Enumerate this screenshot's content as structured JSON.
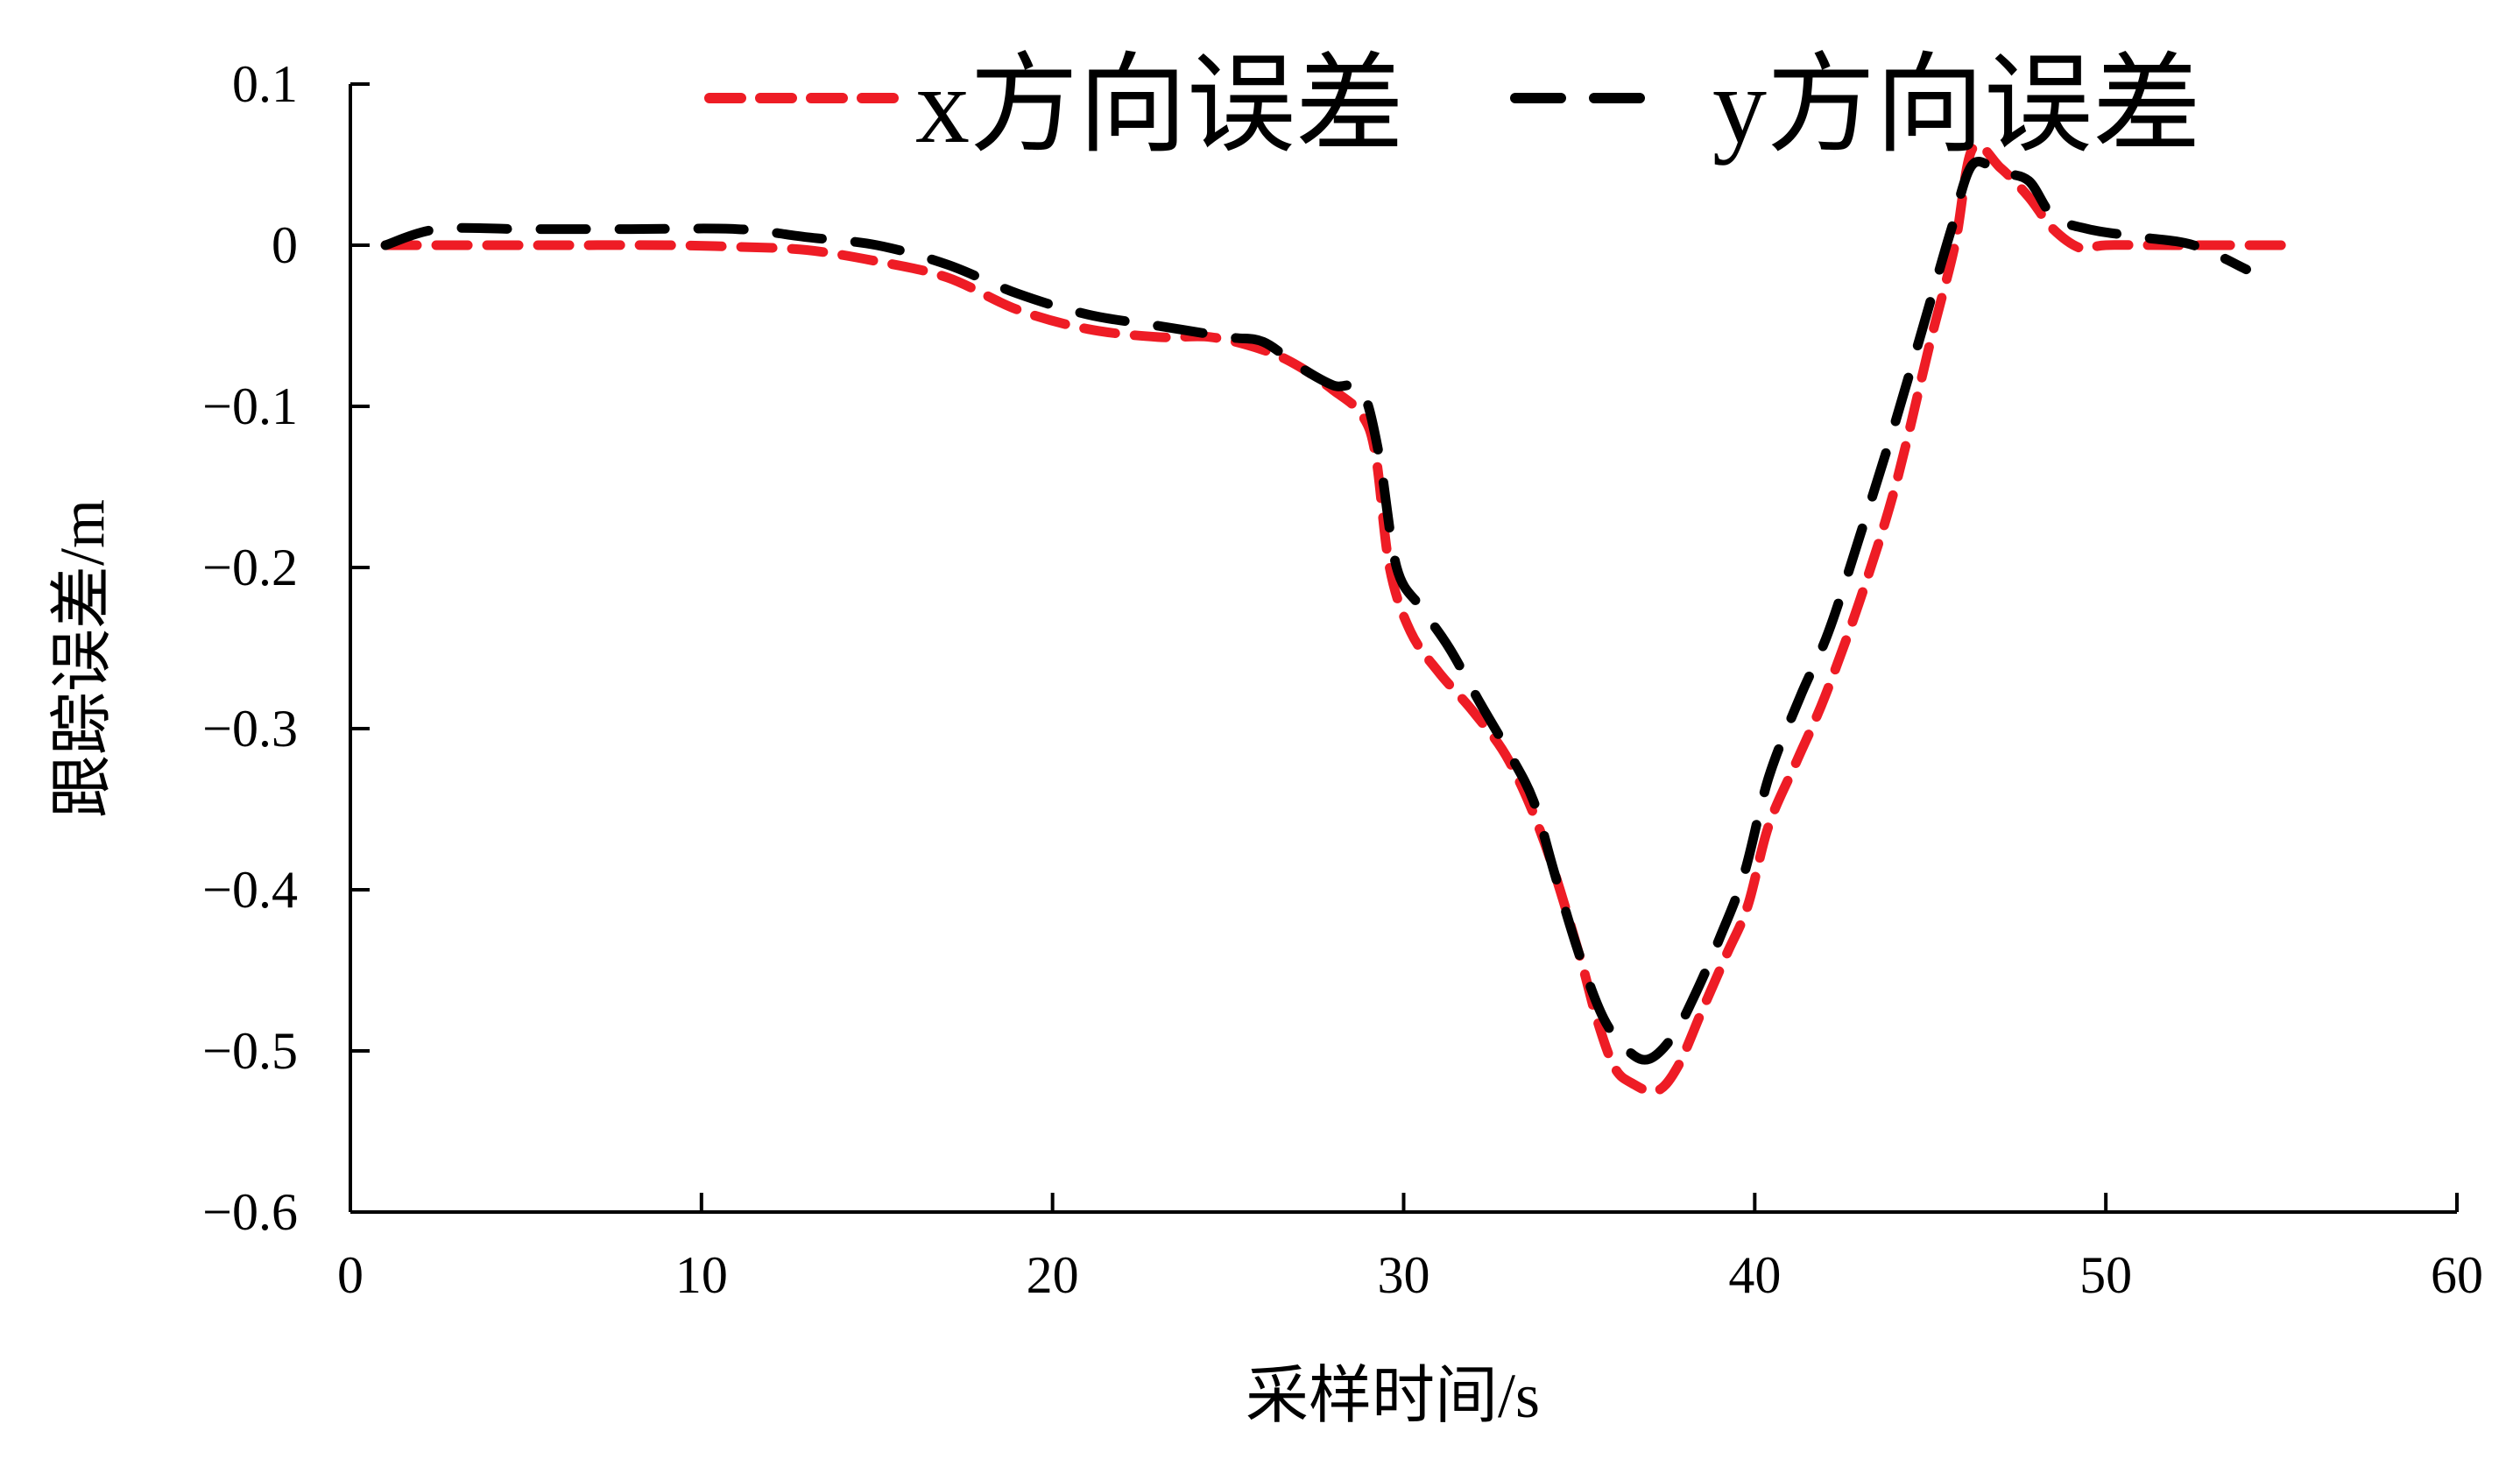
{
  "chart_data": {
    "type": "line",
    "xlabel": "采样时间/s",
    "ylabel": "跟踪误差/m",
    "xlim": [
      0,
      60
    ],
    "ylim": [
      -0.6,
      0.1
    ],
    "x_ticks": [
      0,
      10,
      20,
      30,
      40,
      50,
      60
    ],
    "x_tick_labels": [
      "0",
      "10",
      "20",
      "30",
      "40",
      "50",
      "60"
    ],
    "y_ticks": [
      0.1,
      0,
      -0.1,
      -0.2,
      -0.3,
      -0.4,
      -0.5,
      -0.6
    ],
    "y_tick_labels": [
      "0.1",
      "0",
      "−0.1",
      "−0.2",
      "−0.3",
      "−0.4",
      "−0.5",
      "−0.6"
    ],
    "grid": false,
    "legend_position": "top",
    "series": [
      {
        "name": "x方向误差",
        "color": "#ee1c25",
        "line_style": "dashed",
        "points": [
          [
            1,
            0
          ],
          [
            3,
            0
          ],
          [
            6,
            0
          ],
          [
            9,
            0
          ],
          [
            11,
            -0.001
          ],
          [
            13,
            -0.003
          ],
          [
            15,
            -0.01
          ],
          [
            17,
            -0.02
          ],
          [
            19,
            -0.04
          ],
          [
            21,
            -0.052
          ],
          [
            23,
            -0.057
          ],
          [
            24.5,
            -0.057
          ],
          [
            26,
            -0.065
          ],
          [
            27,
            -0.075
          ],
          [
            28,
            -0.09
          ],
          [
            28.8,
            -0.105
          ],
          [
            29.2,
            -0.13
          ],
          [
            29.6,
            -0.2
          ],
          [
            30.2,
            -0.24
          ],
          [
            31,
            -0.265
          ],
          [
            32,
            -0.29
          ],
          [
            33,
            -0.32
          ],
          [
            34,
            -0.37
          ],
          [
            35,
            -0.44
          ],
          [
            35.5,
            -0.48
          ],
          [
            36,
            -0.51
          ],
          [
            36.5,
            -0.52
          ],
          [
            37.2,
            -0.525
          ],
          [
            37.8,
            -0.51
          ],
          [
            38.5,
            -0.475
          ],
          [
            39.2,
            -0.44
          ],
          [
            39.8,
            -0.41
          ],
          [
            40.4,
            -0.36
          ],
          [
            41.2,
            -0.32
          ],
          [
            42,
            -0.28
          ],
          [
            43,
            -0.22
          ],
          [
            44,
            -0.15
          ],
          [
            45,
            -0.06
          ],
          [
            45.7,
            0.0
          ],
          [
            46.2,
            0.06
          ],
          [
            47,
            0.048
          ],
          [
            47.8,
            0.03
          ],
          [
            48.5,
            0.01
          ],
          [
            49.3,
            -0.002
          ],
          [
            50,
            0
          ],
          [
            52,
            0
          ],
          [
            55,
            0
          ]
        ]
      },
      {
        "name": "y方向误差",
        "color": "#000000",
        "line_style": "dashed",
        "points": [
          [
            1,
            0
          ],
          [
            2.5,
            0.01
          ],
          [
            5,
            0.01
          ],
          [
            8,
            0.01
          ],
          [
            11,
            0.01
          ],
          [
            13,
            0.005
          ],
          [
            15,
            0
          ],
          [
            17,
            -0.012
          ],
          [
            19,
            -0.03
          ],
          [
            21,
            -0.043
          ],
          [
            23,
            -0.05
          ],
          [
            25,
            -0.057
          ],
          [
            26,
            -0.06
          ],
          [
            27,
            -0.075
          ],
          [
            28,
            -0.087
          ],
          [
            28.8,
            -0.09
          ],
          [
            29.3,
            -0.13
          ],
          [
            29.8,
            -0.2
          ],
          [
            30.5,
            -0.225
          ],
          [
            31.3,
            -0.25
          ],
          [
            32.2,
            -0.285
          ],
          [
            33,
            -0.315
          ],
          [
            33.7,
            -0.345
          ],
          [
            34.3,
            -0.39
          ],
          [
            35,
            -0.44
          ],
          [
            35.7,
            -0.48
          ],
          [
            36.4,
            -0.5
          ],
          [
            37,
            -0.505
          ],
          [
            37.7,
            -0.49
          ],
          [
            38.3,
            -0.465
          ],
          [
            39,
            -0.43
          ],
          [
            39.7,
            -0.39
          ],
          [
            40.4,
            -0.33
          ],
          [
            41.3,
            -0.28
          ],
          [
            42.1,
            -0.24
          ],
          [
            43,
            -0.18
          ],
          [
            44,
            -0.11
          ],
          [
            45,
            -0.035
          ],
          [
            45.6,
            0.01
          ],
          [
            46.2,
            0.05
          ],
          [
            47,
            0.045
          ],
          [
            47.8,
            0.04
          ],
          [
            48.5,
            0.018
          ],
          [
            49.5,
            0.01
          ],
          [
            51,
            0.005
          ],
          [
            52.5,
            0
          ],
          [
            54,
            -0.015
          ]
        ]
      }
    ]
  }
}
